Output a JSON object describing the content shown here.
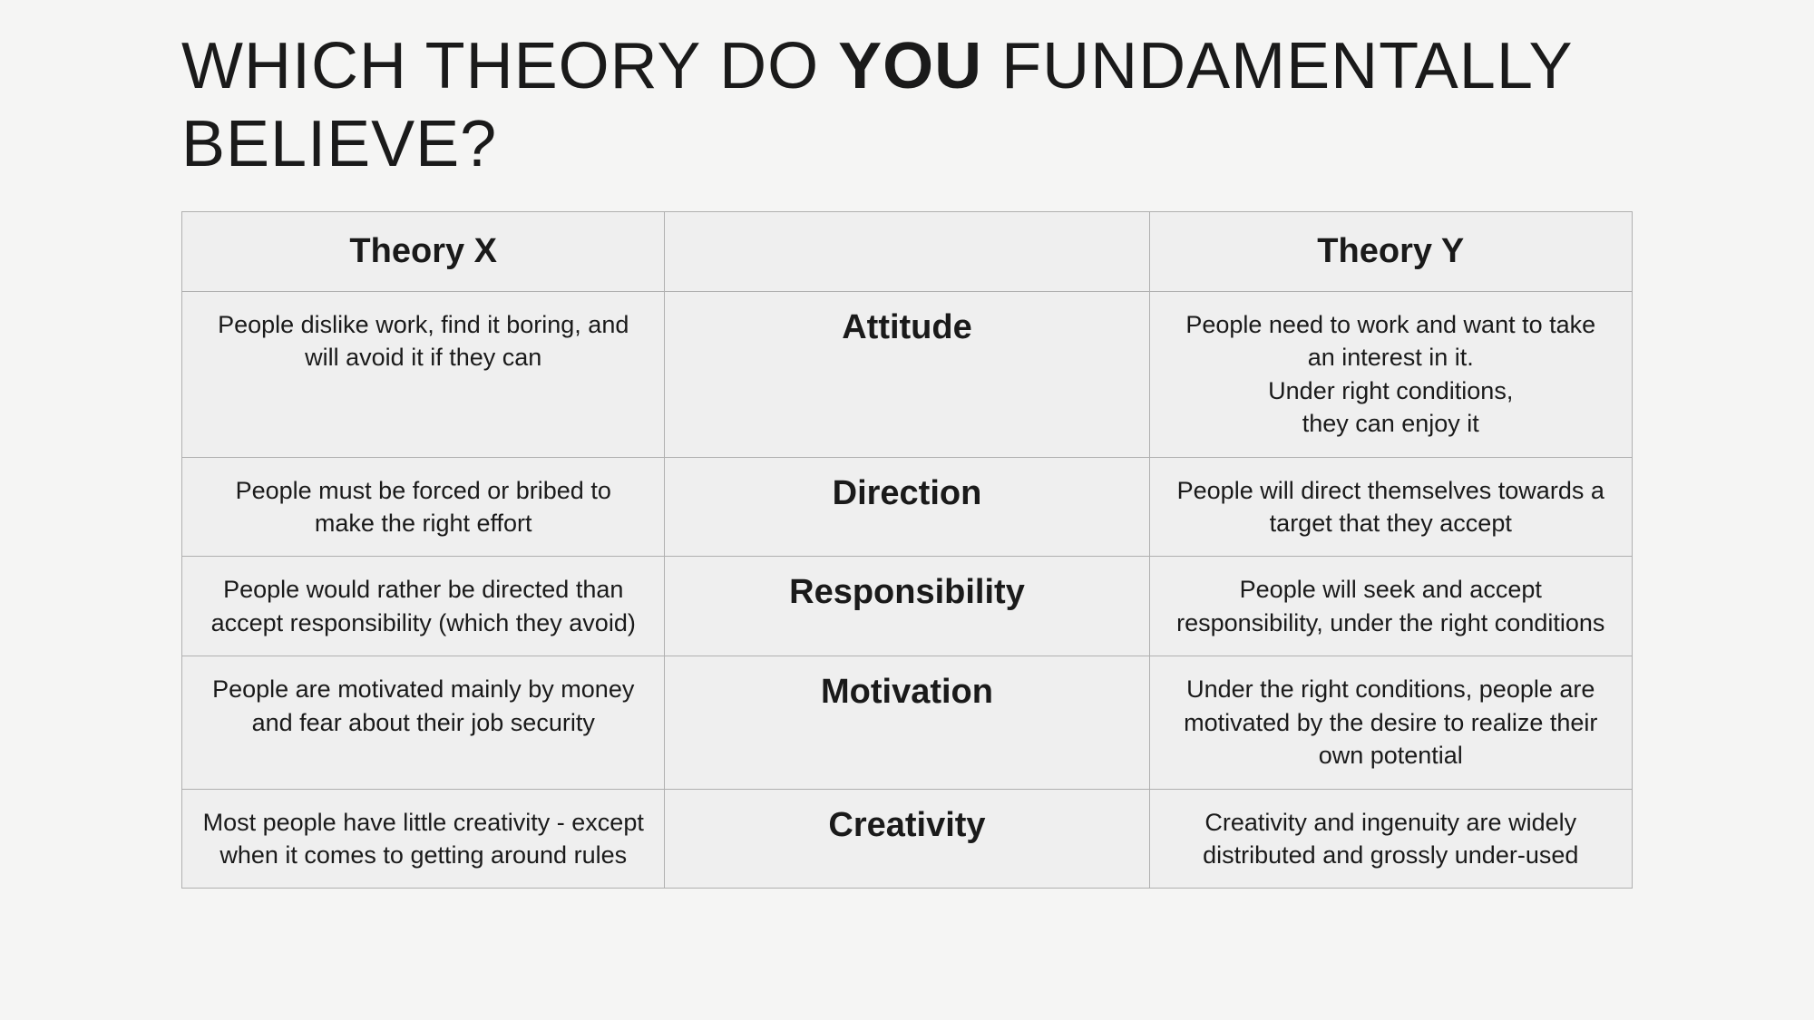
{
  "slide": {
    "title_pre": "WHICH THEORY DO ",
    "title_em": "YOU",
    "title_post": " FUNDAMENTALLY BELIEVE?"
  },
  "table": {
    "type": "table",
    "background_color": "#f5f5f4",
    "cell_background": "#efefef",
    "border_color": "#b0b0b0",
    "text_color": "#1a1a1a",
    "header_fontsize_pt": 29,
    "category_fontsize_pt": 29,
    "content_fontsize_pt": 20,
    "columns": [
      "Theory X",
      "",
      "Theory Y"
    ],
    "rows": [
      {
        "x": "People dislike work, find it boring, and will avoid it if they can",
        "category": "Attitude",
        "y_lines": [
          "People need to work and want to take an interest in it.",
          "Under right conditions,",
          "they can enjoy it"
        ]
      },
      {
        "x": "People must be forced or bribed to make the right effort",
        "category": "Direction",
        "y_lines": [
          "People will direct themselves towards a target that they accept"
        ]
      },
      {
        "x": "People would rather be directed than accept responsibility (which they avoid)",
        "category": "Responsibility",
        "y_lines": [
          "People will seek and accept responsibility, under the right conditions"
        ]
      },
      {
        "x": "People are motivated mainly by money and fear about their job security",
        "category": "Motivation",
        "y_lines": [
          "Under the right conditions, people are motivated by the desire to realize their own potential"
        ]
      },
      {
        "x": "Most people have little creativity - except when it comes to getting around rules",
        "category": "Creativity",
        "y_lines": [
          "Creativity and ingenuity are widely distributed and grossly under-used"
        ]
      }
    ]
  }
}
